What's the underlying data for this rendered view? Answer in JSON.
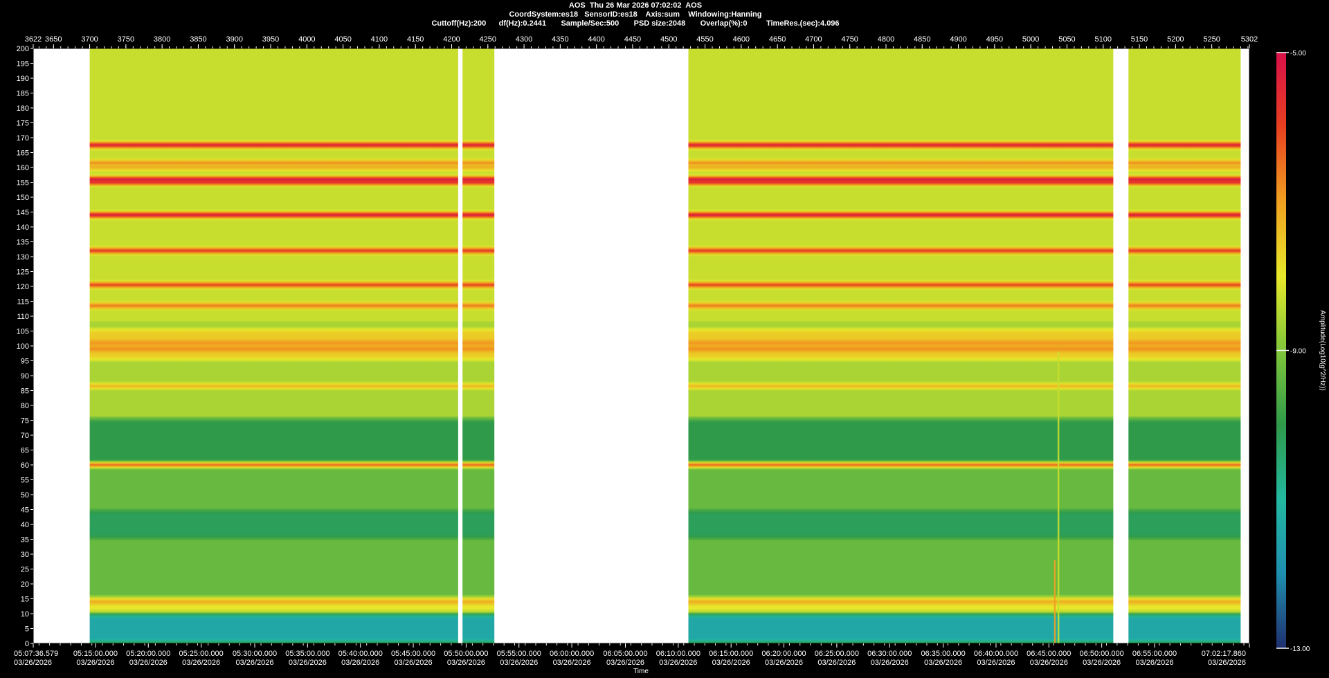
{
  "header": {
    "line1": "AOS  Thu 26 Mar 2026 07:02:02  AOS",
    "line2": "CoordSystem:es18   SensorID:es18    Axis:sum    Windowing:Hanning",
    "line3": "Cuttoff(Hz):200      df(Hz):0.2441       Sample/Sec:500       PSD size:2048       Overlap(%):0         TimeRes.(sec):4.096"
  },
  "chart_data": {
    "type": "heatmap",
    "title": "AOS  Thu 26 Mar 2026 07:02:02  AOS",
    "xlabel": "Time",
    "ylabel": "",
    "colorbar_label": "Amplitude(Log10(g^2/Hz))",
    "colorbar_ticks": [
      "-5.00",
      "-9.00",
      "-13.00"
    ],
    "colorbar_range": [
      -13,
      -5
    ],
    "colormap": [
      "#1f2f6e",
      "#1f8fb0",
      "#22b8a0",
      "#2f9a4a",
      "#7fc63a",
      "#e8e82a",
      "#f0a020",
      "#e8401f",
      "#d8104a"
    ],
    "ylim": [
      0,
      200
    ],
    "y_ticks": [
      0,
      5,
      10,
      15,
      20,
      25,
      30,
      35,
      40,
      45,
      50,
      55,
      60,
      65,
      70,
      75,
      80,
      85,
      90,
      95,
      100,
      105,
      110,
      115,
      120,
      125,
      130,
      135,
      140,
      145,
      150,
      155,
      160,
      165,
      170,
      175,
      180,
      185,
      190,
      195,
      200
    ],
    "top_axis_range": [
      3622,
      5302
    ],
    "top_ticks": [
      3622,
      3650,
      3700,
      3750,
      3800,
      3850,
      3900,
      3950,
      4000,
      4050,
      4100,
      4150,
      4200,
      4250,
      4300,
      4350,
      4400,
      4450,
      4500,
      4550,
      4600,
      4650,
      4700,
      4750,
      4800,
      4850,
      4900,
      4950,
      5000,
      5050,
      5100,
      5150,
      5200,
      5250,
      5302
    ],
    "time_ticks": [
      {
        "at": 3622,
        "time": "05:07:36.579",
        "date": "03/26/2026"
      },
      {
        "at": 3708,
        "time": "05:15:00.000",
        "date": "03/26/2026"
      },
      {
        "at": 3781,
        "time": "05:20:00.000",
        "date": "03/26/2026"
      },
      {
        "at": 3854,
        "time": "05:25:00.000",
        "date": "03/26/2026"
      },
      {
        "at": 3928,
        "time": "05:30:00.000",
        "date": "03/26/2026"
      },
      {
        "at": 4001,
        "time": "05:35:00.000",
        "date": "03/26/2026"
      },
      {
        "at": 4074,
        "time": "05:40:00.000",
        "date": "03/26/2026"
      },
      {
        "at": 4147,
        "time": "05:45:00.000",
        "date": "03/26/2026"
      },
      {
        "at": 4220,
        "time": "05:50:00.000",
        "date": "03/26/2026"
      },
      {
        "at": 4293,
        "time": "05:55:00.000",
        "date": "03/26/2026"
      },
      {
        "at": 4366,
        "time": "06:00:00.000",
        "date": "03/26/2026"
      },
      {
        "at": 4440,
        "time": "06:05:00.000",
        "date": "03/26/2026"
      },
      {
        "at": 4513,
        "time": "06:10:00.000",
        "date": "03/26/2026"
      },
      {
        "at": 4586,
        "time": "06:15:00.000",
        "date": "03/26/2026"
      },
      {
        "at": 4659,
        "time": "06:20:00.000",
        "date": "03/26/2026"
      },
      {
        "at": 4732,
        "time": "06:25:00.000",
        "date": "03/26/2026"
      },
      {
        "at": 4805,
        "time": "06:30:00.000",
        "date": "03/26/2026"
      },
      {
        "at": 4879,
        "time": "06:35:00.000",
        "date": "03/26/2026"
      },
      {
        "at": 4952,
        "time": "06:40:00.000",
        "date": "03/26/2026"
      },
      {
        "at": 5025,
        "time": "06:45:00.000",
        "date": "03/26/2026"
      },
      {
        "at": 5098,
        "time": "06:50:00.000",
        "date": "03/26/2026"
      },
      {
        "at": 5171,
        "time": "06:55:00.000",
        "date": "03/26/2026"
      },
      {
        "at": 5302,
        "time": "07:02:17.860",
        "date": "03/26/2026"
      }
    ],
    "data_segments": [
      {
        "start": 3700,
        "end": 4209
      },
      {
        "start": 4215,
        "end": 4259
      },
      {
        "start": 4527,
        "end": 5114
      },
      {
        "start": 5135,
        "end": 5290
      }
    ],
    "spectral_lines_hz": [
      {
        "hz": 167.5,
        "amp": -5.3
      },
      {
        "hz": 161.5,
        "amp": -6.8
      },
      {
        "hz": 160.0,
        "amp": -7.2
      },
      {
        "hz": 156.0,
        "amp": -5.2
      },
      {
        "hz": 155.0,
        "amp": -5.6
      },
      {
        "hz": 144.0,
        "amp": -5.2
      },
      {
        "hz": 132.0,
        "amp": -5.8
      },
      {
        "hz": 120.5,
        "amp": -6.0
      },
      {
        "hz": 113.5,
        "amp": -6.6
      },
      {
        "hz": 101.0,
        "amp": -6.9
      },
      {
        "hz": 99.0,
        "amp": -6.8
      },
      {
        "hz": 86.5,
        "amp": -7.3
      },
      {
        "hz": 60.0,
        "amp": -6.4
      },
      {
        "hz": 14.0,
        "amp": -7.2
      }
    ],
    "broadband_hz": [
      {
        "lo": 95,
        "hi": 106,
        "amp": -7.6
      },
      {
        "lo": 10,
        "hi": 16,
        "amp": -8.0
      },
      {
        "lo": 0,
        "hi": 10,
        "amp": -11.4
      },
      {
        "lo": 35,
        "hi": 45,
        "amp": -10.2
      },
      {
        "lo": 60,
        "hi": 76,
        "amp": -10.0
      }
    ],
    "transient_events": [
      {
        "x": 5038,
        "hz_top": 98,
        "amp": -8.3
      },
      {
        "x": 5033,
        "hz_top": 28,
        "amp": -7.0
      }
    ]
  }
}
